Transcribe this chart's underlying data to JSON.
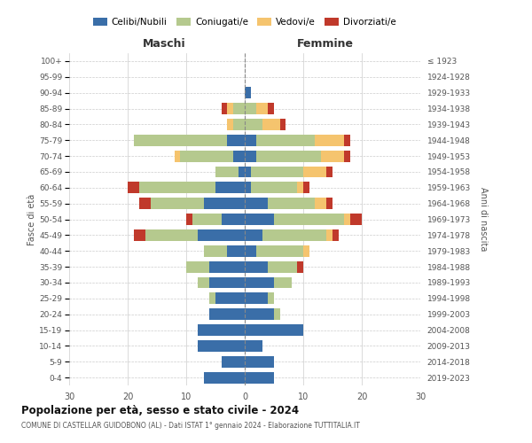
{
  "age_groups": [
    "100+",
    "95-99",
    "90-94",
    "85-89",
    "80-84",
    "75-79",
    "70-74",
    "65-69",
    "60-64",
    "55-59",
    "50-54",
    "45-49",
    "40-44",
    "35-39",
    "30-34",
    "25-29",
    "20-24",
    "15-19",
    "10-14",
    "5-9",
    "0-4"
  ],
  "birth_years": [
    "≤ 1923",
    "1924-1928",
    "1929-1933",
    "1934-1938",
    "1939-1943",
    "1944-1948",
    "1949-1953",
    "1954-1958",
    "1959-1963",
    "1964-1968",
    "1969-1973",
    "1974-1978",
    "1979-1983",
    "1984-1988",
    "1989-1993",
    "1994-1998",
    "1999-2003",
    "2004-2008",
    "2009-2013",
    "2014-2018",
    "2019-2023"
  ],
  "maschi": {
    "celibi": [
      0,
      0,
      0,
      0,
      0,
      3,
      2,
      1,
      5,
      7,
      4,
      8,
      3,
      6,
      6,
      5,
      6,
      8,
      8,
      4,
      7
    ],
    "coniugati": [
      0,
      0,
      0,
      2,
      2,
      16,
      9,
      4,
      13,
      9,
      5,
      9,
      4,
      4,
      2,
      1,
      0,
      0,
      0,
      0,
      0
    ],
    "vedovi": [
      0,
      0,
      0,
      1,
      1,
      0,
      1,
      0,
      0,
      0,
      0,
      0,
      0,
      0,
      0,
      0,
      0,
      0,
      0,
      0,
      0
    ],
    "divorziati": [
      0,
      0,
      0,
      1,
      0,
      0,
      0,
      0,
      2,
      2,
      1,
      2,
      0,
      0,
      0,
      0,
      0,
      0,
      0,
      0,
      0
    ]
  },
  "femmine": {
    "nubili": [
      0,
      0,
      1,
      0,
      0,
      2,
      2,
      1,
      1,
      4,
      5,
      3,
      2,
      4,
      5,
      4,
      5,
      10,
      3,
      5,
      5
    ],
    "coniugate": [
      0,
      0,
      0,
      2,
      3,
      10,
      11,
      9,
      8,
      8,
      12,
      11,
      8,
      5,
      3,
      1,
      1,
      0,
      0,
      0,
      0
    ],
    "vedove": [
      0,
      0,
      0,
      2,
      3,
      5,
      4,
      4,
      1,
      2,
      1,
      1,
      1,
      0,
      0,
      0,
      0,
      0,
      0,
      0,
      0
    ],
    "divorziate": [
      0,
      0,
      0,
      1,
      1,
      1,
      1,
      1,
      1,
      1,
      2,
      1,
      0,
      1,
      0,
      0,
      0,
      0,
      0,
      0,
      0
    ]
  },
  "colors": {
    "celibi": "#3a6ea8",
    "coniugati": "#b5c98e",
    "vedovi": "#f5c46e",
    "divorziati": "#c0392b"
  },
  "title": "Popolazione per età, sesso e stato civile - 2024",
  "subtitle": "COMUNE DI CASTELLAR GUIDOBONO (AL) - Dati ISTAT 1° gennaio 2024 - Elaborazione TUTTITALIA.IT",
  "ylabel_left": "Fasce di età",
  "ylabel_right": "Anni di nascita",
  "xlabel_maschi": "Maschi",
  "xlabel_femmine": "Femmine",
  "xlim": 30,
  "bg_color": "#ffffff",
  "grid_color": "#cccccc"
}
